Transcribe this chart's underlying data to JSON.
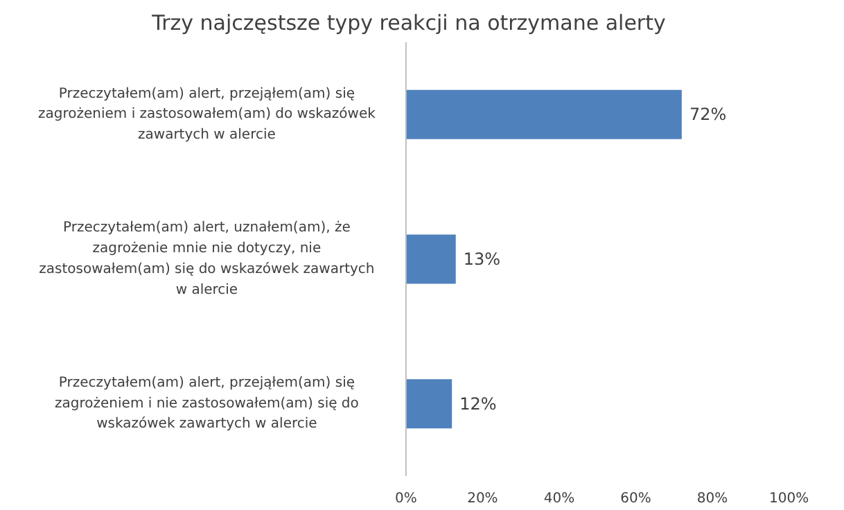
{
  "chart_data": {
    "type": "bar",
    "orientation": "horizontal",
    "title": "Trzy najczęstsze typy reakcji na otrzymane alerty",
    "categories": [
      "Przeczytałem(am) alert, przejąłem(am) się zagrożeniem i zastosowałem(am) do wskazówek zawartych w alercie",
      "Przeczytałem(am) alert, uznałem(am), że zagrożenie mnie nie dotyczy, nie zastosowałem(am) się do wskazówek zawartych w alercie",
      "Przeczytałem(am) alert, przejąłem(am) się zagrożeniem i nie zastosowałem(am) się do wskazówek zawartych w alercie"
    ],
    "values": [
      72,
      13,
      12
    ],
    "color": "#4f81bd",
    "value_labels": [
      "72%",
      "13%",
      "12%"
    ],
    "xlim": [
      0,
      100
    ],
    "xticks": [
      {
        "value": 0,
        "label": "0%"
      },
      {
        "value": 20,
        "label": "20%"
      },
      {
        "value": 40,
        "label": "40%"
      },
      {
        "value": 60,
        "label": "60%"
      },
      {
        "value": 80,
        "label": "80%"
      },
      {
        "value": 100,
        "label": "100%"
      }
    ],
    "grid": false
  }
}
